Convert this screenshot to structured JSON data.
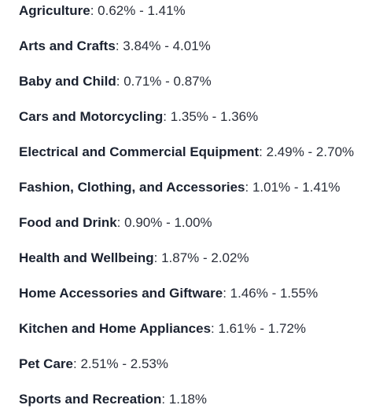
{
  "items": [
    {
      "category": "Agriculture",
      "separator": ":",
      "range": "0.62% - 1.41%"
    },
    {
      "category": "Arts and Crafts",
      "separator": ":",
      "range": "3.84% - 4.01%"
    },
    {
      "category": "Baby and Child",
      "separator": ":",
      "range": "0.71% - 0.87%"
    },
    {
      "category": "Cars and Motorcycling",
      "separator": ":",
      "range": "1.35% - 1.36%"
    },
    {
      "category": "Electrical and Commercial Equipment",
      "separator": ":",
      "range": "2.49% - 2.70%"
    },
    {
      "category": "Fashion, Clothing, and Accessories",
      "separator": ":",
      "range": "1.01% - 1.41%"
    },
    {
      "category": "Food and Drink",
      "separator": ":",
      "range": "0.90% - 1.00%"
    },
    {
      "category": "Health and Wellbeing",
      "separator": ":",
      "range": "1.87% - 2.02%"
    },
    {
      "category": "Home Accessories and Giftware",
      "separator": ":",
      "range": "1.46% - 1.55%"
    },
    {
      "category": "Kitchen and Home Appliances",
      "separator": ":",
      "range": "1.61% - 1.72%"
    },
    {
      "category": "Pet Care",
      "separator": ":",
      "range": "2.51% - 2.53%"
    },
    {
      "category": "Sports and Recreation",
      "separator": ":",
      "range": "1.18%"
    }
  ]
}
